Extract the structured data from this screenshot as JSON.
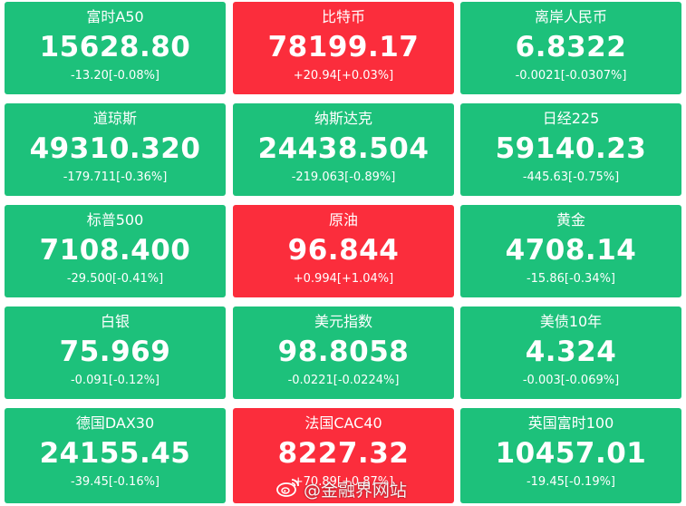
{
  "tiles": [
    {
      "name": "富时A50",
      "value": "15628.80",
      "change": "-13.20[-0.08%]",
      "direction": "down"
    },
    {
      "name": "比特币",
      "value": "78199.17",
      "change": "+20.94[+0.03%]",
      "direction": "up"
    },
    {
      "name": "离岸人民币",
      "value": "6.8322",
      "change": "-0.0021[-0.0307%]",
      "direction": "down"
    },
    {
      "name": "道琼斯",
      "value": "49310.320",
      "change": "-179.711[-0.36%]",
      "direction": "down"
    },
    {
      "name": "纳斯达克",
      "value": "24438.504",
      "change": "-219.063[-0.89%]",
      "direction": "down"
    },
    {
      "name": "日经225",
      "value": "59140.23",
      "change": "-445.63[-0.75%]",
      "direction": "down"
    },
    {
      "name": "标普500",
      "value": "7108.400",
      "change": "-29.500[-0.41%]",
      "direction": "down"
    },
    {
      "name": "原油",
      "value": "96.844",
      "change": "+0.994[+1.04%]",
      "direction": "up"
    },
    {
      "name": "黄金",
      "value": "4708.14",
      "change": "-15.86[-0.34%]",
      "direction": "down"
    },
    {
      "name": "白银",
      "value": "75.969",
      "change": "-0.091[-0.12%]",
      "direction": "down"
    },
    {
      "name": "美元指数",
      "value": "98.8058",
      "change": "-0.0221[-0.0224%]",
      "direction": "down"
    },
    {
      "name": "美债10年",
      "value": "4.324",
      "change": "-0.003[-0.069%]",
      "direction": "down"
    },
    {
      "name": "德国DAX30",
      "value": "24155.45",
      "change": "-39.45[-0.16%]",
      "direction": "down"
    },
    {
      "name": "法国CAC40",
      "value": "8227.32",
      "change": "+70.89[+0.87%]",
      "direction": "up"
    },
    {
      "name": "英国富时100",
      "value": "10457.01",
      "change": "-19.45[-0.19%]",
      "direction": "down"
    }
  ],
  "colors": {
    "up": "#fb2d3c",
    "down": "#1dc17b",
    "text": "#ffffff"
  },
  "watermark": {
    "icon": "weibo-icon",
    "text": "@金融界网站"
  }
}
